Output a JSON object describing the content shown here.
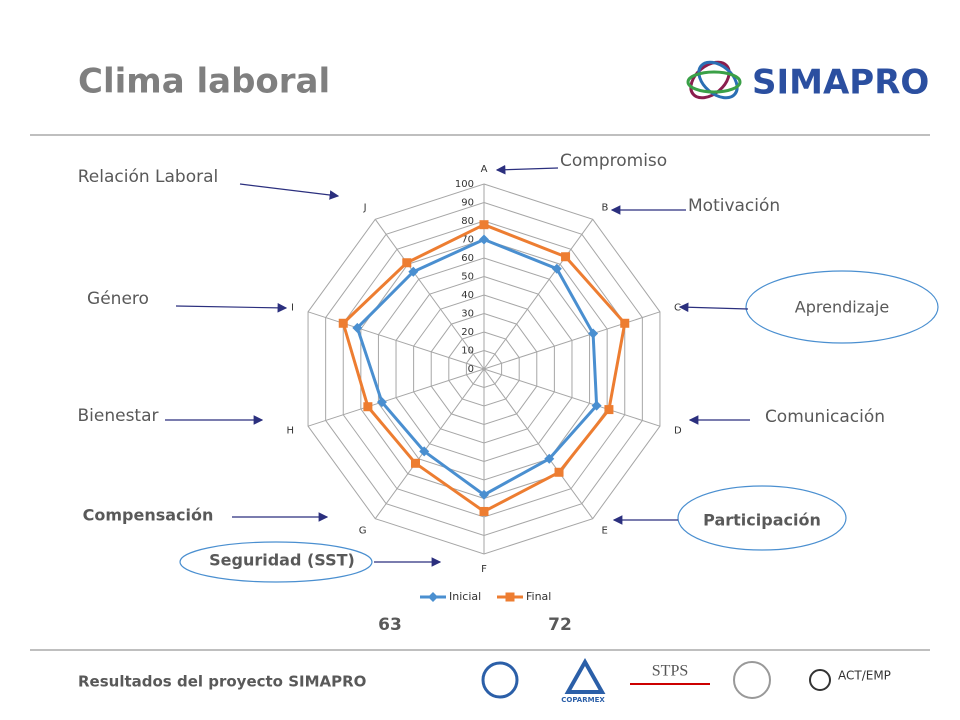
{
  "slide": {
    "title": "Clima laboral",
    "logo": "SIMAPRO",
    "footer": "Resultados del proyecto SIMAPRO",
    "footer_logos": [
      "COPARMEX",
      "STPS",
      "ACT/EMP"
    ]
  },
  "chart_data": {
    "type": "radar",
    "categories": [
      "A",
      "B",
      "C",
      "D",
      "E",
      "F",
      "G",
      "H",
      "I",
      "J"
    ],
    "series": [
      {
        "name": "Inicial",
        "color": "#4a8fd0",
        "marker": "diamond",
        "values": [
          70,
          67,
          62,
          64,
          60,
          68,
          55,
          58,
          72,
          65
        ]
      },
      {
        "name": "Final",
        "color": "#ed7d31",
        "marker": "square",
        "values": [
          78,
          75,
          80,
          71,
          69,
          77,
          63,
          66,
          80,
          71
        ]
      }
    ],
    "rlim": [
      0,
      100
    ],
    "rticks": [
      0,
      10,
      20,
      30,
      40,
      50,
      60,
      70,
      80,
      90,
      100
    ],
    "grid": true,
    "legend": "bottom",
    "annotations": [
      "Compromiso",
      "Motivación",
      "Aprendizaje",
      "Comunicación",
      "Participación",
      "Seguridad (SST)",
      "Compensación",
      "Bienestar",
      "Género",
      "Relación Laboral",
      "63",
      "72"
    ]
  }
}
